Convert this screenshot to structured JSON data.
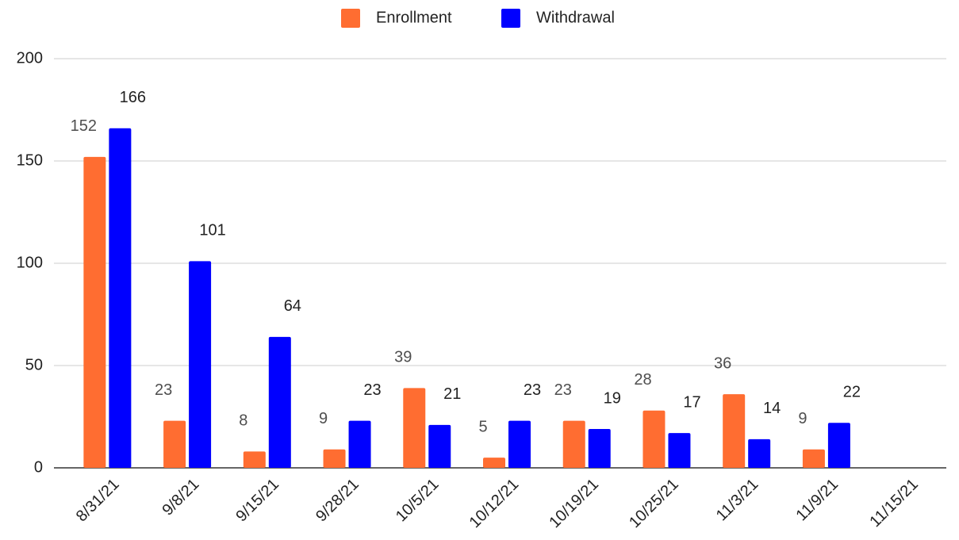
{
  "chart_data": {
    "type": "bar",
    "categories": [
      "8/31/21",
      "9/8/21",
      "9/15/21",
      "9/28/21",
      "10/5/21",
      "10/12/21",
      "10/19/21",
      "10/25/21",
      "11/3/21",
      "11/9/21",
      "11/15/21"
    ],
    "series": [
      {
        "name": "Enrollment",
        "color": "#ff6d31",
        "values": [
          152,
          23,
          8,
          9,
          39,
          5,
          23,
          28,
          36,
          9,
          null
        ]
      },
      {
        "name": "Withdrawal",
        "color": "#0000ff",
        "values": [
          166,
          101,
          64,
          23,
          21,
          23,
          19,
          17,
          14,
          22,
          null
        ]
      }
    ],
    "ylim": [
      0,
      200
    ],
    "yticks": [
      0,
      50,
      100,
      150,
      200
    ],
    "grid": true,
    "legend": "top"
  }
}
